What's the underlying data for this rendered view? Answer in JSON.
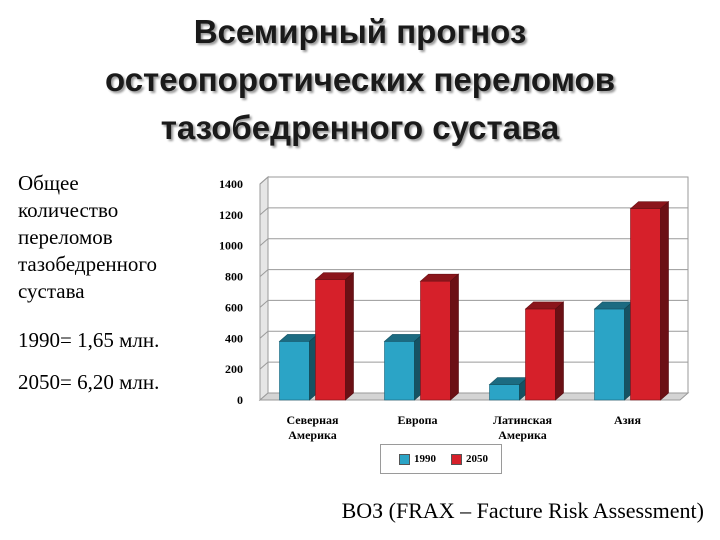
{
  "title_lines": [
    "Всемирный прогноз",
    "остеопоротических переломов",
    "тазобедренного сустава"
  ],
  "side_text_lines": [
    "Общее",
    "количество",
    "переломов",
    "тазобедренного",
    "сустава"
  ],
  "stat_1990": "1990= 1,65 млн.",
  "stat_2050": "2050= 6,20 млн.",
  "source": "ВОЗ (FRAX – Facture Risk Assessment)",
  "chart_data": {
    "type": "bar",
    "categories": [
      [
        "Северная",
        "Америка"
      ],
      [
        "Европа"
      ],
      [
        "Латинская",
        "Америка"
      ],
      [
        "Азия"
      ]
    ],
    "series": [
      {
        "name": "1990",
        "color": "#2ba4c6",
        "values": [
          380,
          380,
          100,
          590
        ]
      },
      {
        "name": "2050",
        "color": "#d6202a",
        "values": [
          780,
          770,
          590,
          1240
        ]
      }
    ],
    "yticks": [
      0,
      200,
      400,
      600,
      800,
      1000,
      1200,
      1400
    ],
    "ylim": [
      0,
      1400
    ],
    "grid": true,
    "legend_position": "bottom"
  }
}
